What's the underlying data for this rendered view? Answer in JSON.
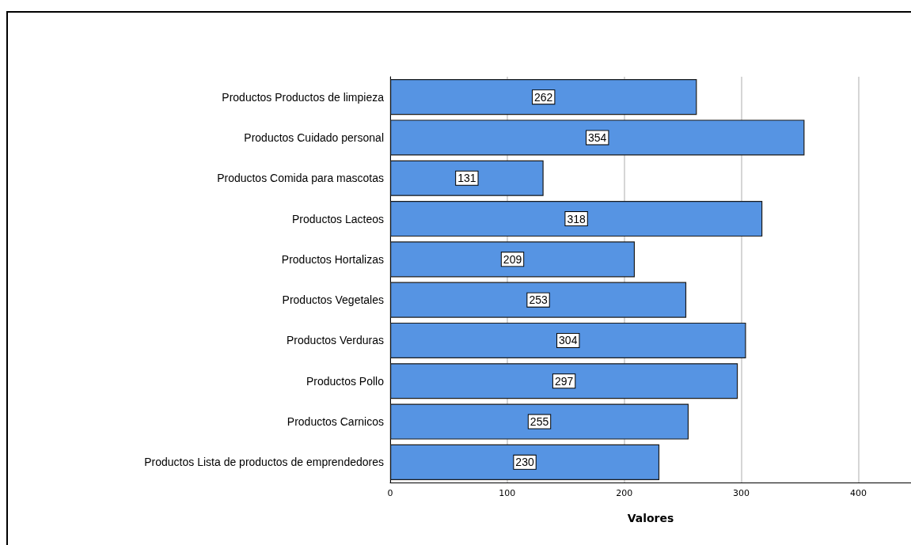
{
  "chart_data": {
    "type": "bar",
    "orientation": "horizontal",
    "xlabel": "Valores",
    "categories": [
      "Productos Productos de limpieza",
      "Productos Cuidado personal",
      "Productos Comida para mascotas",
      "Productos Lacteos",
      "Productos Hortalizas",
      "Productos Vegetales",
      "Productos Verduras",
      "Productos Pollo",
      "Productos Carnicos",
      "Productos Lista de productos de emprendedores"
    ],
    "values": [
      262,
      354,
      131,
      318,
      209,
      253,
      304,
      297,
      255,
      230
    ],
    "color": "#5694e3",
    "xlim": [
      0,
      445
    ],
    "xticks": [
      0,
      100,
      200,
      300,
      400
    ],
    "grid": "x",
    "data_labels": true
  }
}
